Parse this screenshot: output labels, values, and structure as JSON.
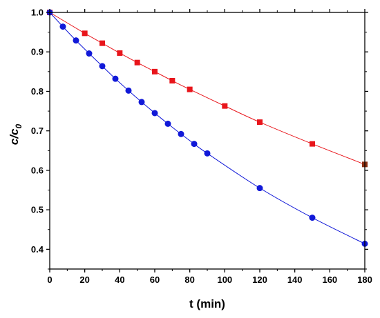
{
  "chart_data": {
    "type": "scatter",
    "xlabel": "t (min)",
    "ylabel_main": "c/c",
    "ylabel_sub": "0",
    "xlim": [
      0,
      180
    ],
    "ylim": [
      0.35,
      1.0
    ],
    "xticks": [
      0,
      20,
      40,
      60,
      80,
      100,
      120,
      140,
      160,
      180
    ],
    "xtick_labels": [
      "0",
      "20",
      "40",
      "60",
      "80",
      "100",
      "120",
      "140",
      "160",
      "180"
    ],
    "yticks": [
      0.4,
      0.5,
      0.6,
      0.7,
      0.8,
      0.9,
      1.0
    ],
    "ytick_labels": [
      "0.4",
      "0.5",
      "0.6",
      "0.7",
      "0.8",
      "0.9",
      "1.0"
    ],
    "grid": false,
    "legend": "none",
    "series": [
      {
        "marker": "square",
        "color": "#e8151b",
        "x": [
          0,
          20,
          30,
          40,
          50,
          60,
          70,
          80,
          100,
          120,
          150,
          180
        ],
        "y": [
          1.0,
          0.947,
          0.922,
          0.897,
          0.873,
          0.85,
          0.827,
          0.805,
          0.763,
          0.722,
          0.667,
          0.615
        ]
      },
      {
        "marker": "circle",
        "color": "#1119d8",
        "x": [
          0,
          7.5,
          15,
          22.5,
          30,
          37.5,
          45,
          52.5,
          60,
          67.5,
          75,
          82.5,
          90,
          120,
          150,
          180
        ],
        "y": [
          1.0,
          0.964,
          0.929,
          0.896,
          0.864,
          0.832,
          0.802,
          0.773,
          0.745,
          0.718,
          0.692,
          0.667,
          0.643,
          0.555,
          0.48,
          0.414
        ]
      }
    ]
  }
}
